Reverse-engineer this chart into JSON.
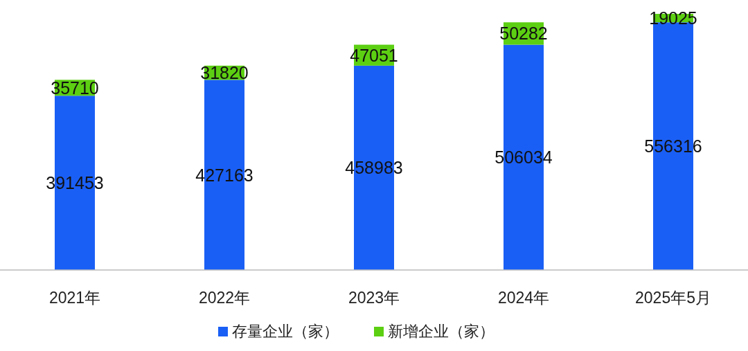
{
  "chart_data": {
    "type": "bar",
    "stacked": true,
    "data_labels": true,
    "legend": "bottom",
    "categories": [
      "2021年",
      "2022年",
      "2023年",
      "2024年",
      "2025年5月"
    ],
    "series": [
      {
        "name": "存量企业（家）",
        "color": "#1a5ff5",
        "values": [
          391453,
          427163,
          458983,
          506034,
          556316
        ]
      },
      {
        "name": "新增企业（家）",
        "color": "#5ccf12",
        "values": [
          35710,
          31820,
          47051,
          50282,
          19025
        ]
      }
    ]
  }
}
